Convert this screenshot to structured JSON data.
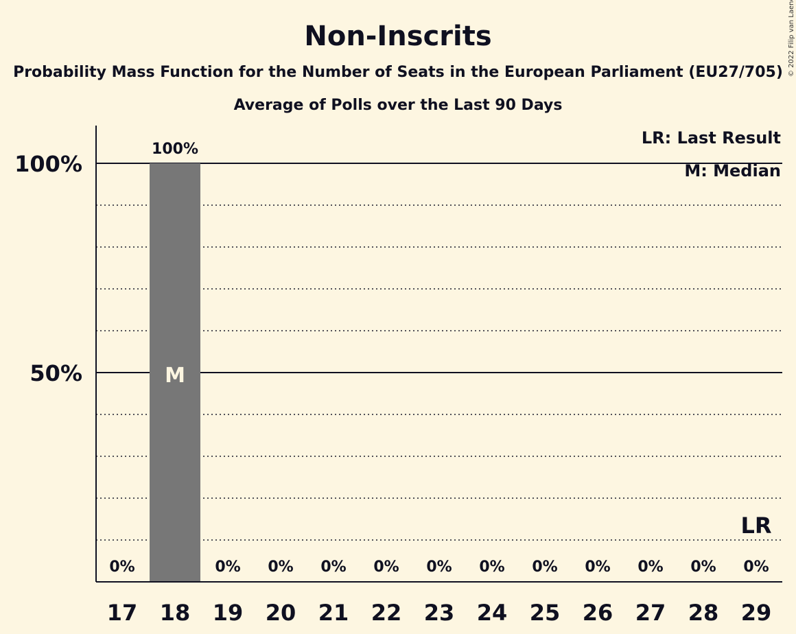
{
  "chart_data": {
    "type": "bar",
    "title": "Non-Inscrits",
    "subtitle": "Probability Mass Function for the Number of Seats in the European Parliament (EU27/705)",
    "subtitle2": "Average of Polls over the Last 90 Days",
    "copyright": "© 2022 Filip van Laenen",
    "categories": [
      "17",
      "18",
      "19",
      "20",
      "21",
      "22",
      "23",
      "24",
      "25",
      "26",
      "27",
      "28",
      "29"
    ],
    "values": [
      0,
      100,
      0,
      0,
      0,
      0,
      0,
      0,
      0,
      0,
      0,
      0,
      0
    ],
    "value_labels": [
      "0%",
      "100%",
      "0%",
      "0%",
      "0%",
      "0%",
      "0%",
      "0%",
      "0%",
      "0%",
      "0%",
      "0%",
      "0%"
    ],
    "ylim": [
      0,
      110
    ],
    "major_ticks": [
      50,
      100
    ],
    "major_tick_labels": [
      "50%",
      "100%"
    ],
    "minor_gridlines": [
      10,
      20,
      30,
      40,
      60,
      70,
      80,
      90
    ],
    "median_category": "18",
    "median_marker": "M",
    "last_result_category": "29",
    "last_result_marker": "LR",
    "legend": [
      "LR: Last Result",
      "M: Median"
    ],
    "legend_position": "top-right",
    "bar_color": "#777777",
    "background_color": "#fdf6e1"
  }
}
